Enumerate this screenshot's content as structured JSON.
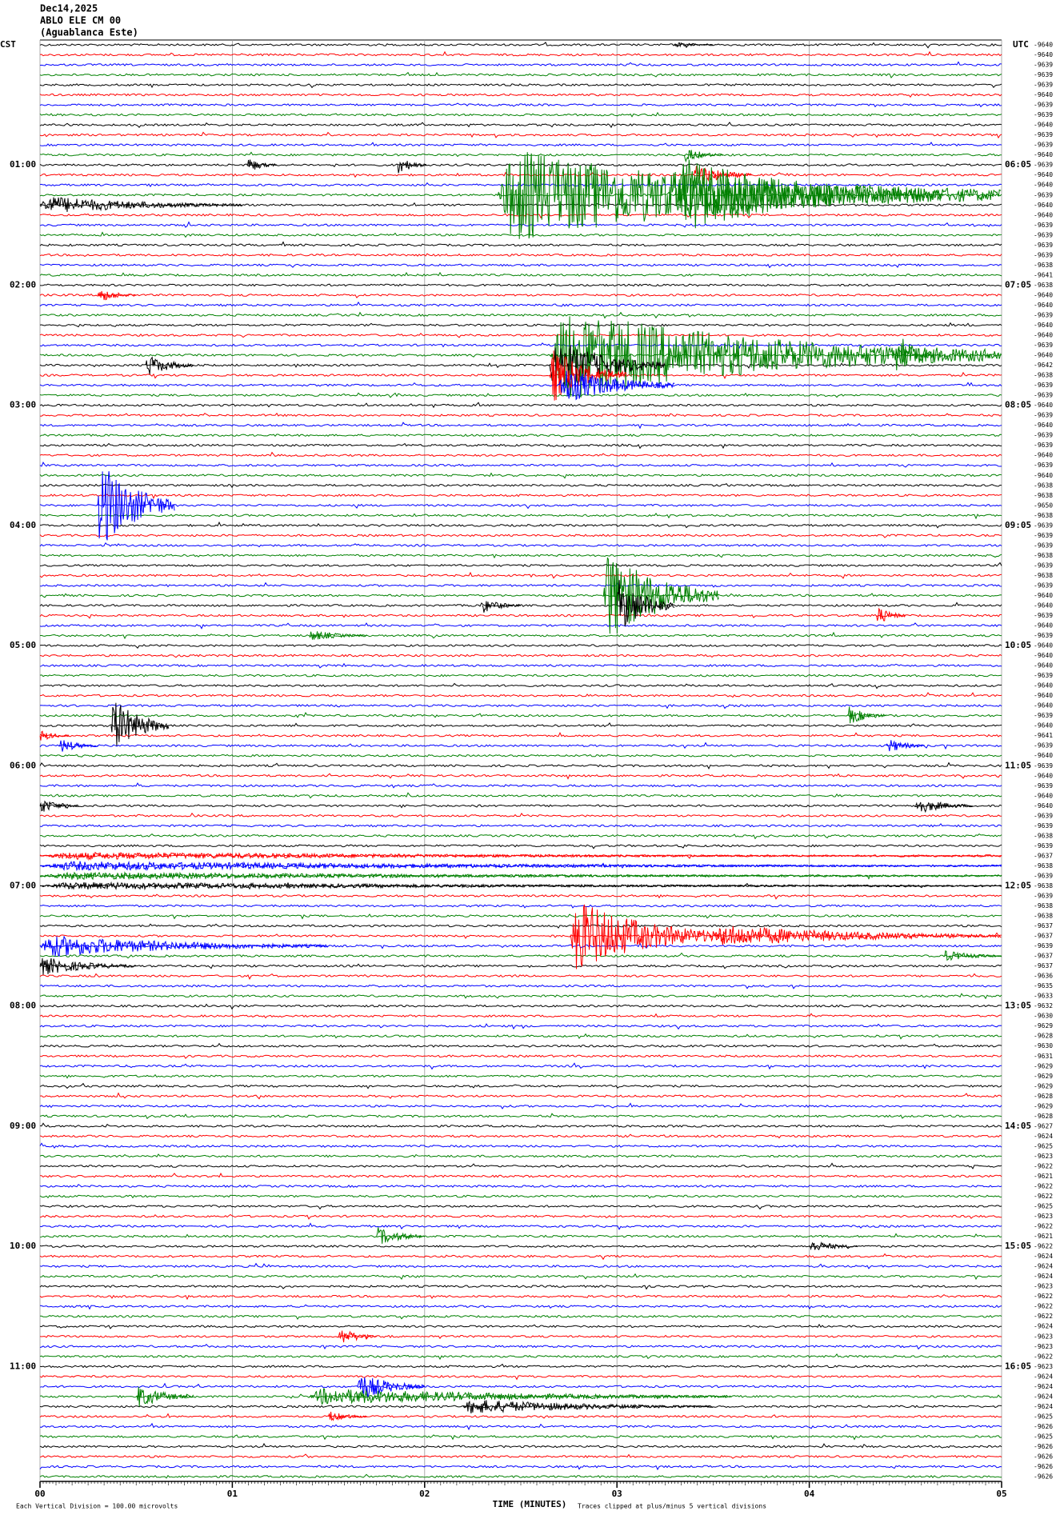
{
  "header": {
    "date": "Dec14,2025",
    "station": "ABLO ELE CM 00",
    "site": "(Aguablanca Este)"
  },
  "left_zone": "CST",
  "right_zone": "UTC",
  "hour_labels_left": [
    "01:00",
    "02:00",
    "03:00",
    "04:00",
    "05:00",
    "06:00",
    "07:00",
    "08:00",
    "09:00",
    "10:00",
    "11:00"
  ],
  "hour_labels_right": [
    "06:05",
    "07:05",
    "08:05",
    "09:05",
    "10:05",
    "11:05",
    "12:05",
    "13:05",
    "14:05",
    "15:05",
    "16:05"
  ],
  "colors": [
    "#000000",
    "#ff0000",
    "#0000ff",
    "#008000"
  ],
  "offsets": [
    -9640,
    -9640,
    -9639,
    -9639,
    -9639,
    -9640,
    -9639,
    -9639,
    -9640,
    -9639,
    -9639,
    -9640,
    -9639,
    -9640,
    -9640,
    -9639,
    -9640,
    -9640,
    -9639,
    -9639,
    -9639,
    -9639,
    -9638,
    -9641,
    -9638,
    -9640,
    -9640,
    -9639,
    -9640,
    -9640,
    -9639,
    -9640,
    -9642,
    -9638,
    -9639,
    -9639,
    -9640,
    -9639,
    -9640,
    -9639,
    -9639,
    -9640,
    -9639,
    -9640,
    -9638,
    -9638,
    -9650,
    -9638,
    -9639,
    -9639,
    -9639,
    -9638,
    -9639,
    -9638,
    -9639,
    -9640,
    -9640,
    -9639,
    -9640,
    -9639,
    -9640,
    -9640,
    -9640,
    -9639,
    -9640,
    -9640,
    -9640,
    -9639,
    -9640,
    -9641,
    -9639,
    -9640,
    -9639,
    -9640,
    -9639,
    -9640,
    -9640,
    -9639,
    -9639,
    -9638,
    -9639,
    -9637,
    -9638,
    -9639,
    -9638,
    -9639,
    -9638,
    -9638,
    -9637,
    -9637,
    -9639,
    -9637,
    -9637,
    -9636,
    -9635,
    -9633,
    -9632,
    -9630,
    -9629,
    -9628,
    -9630,
    -9631,
    -9629,
    -9629,
    -9629,
    -9628,
    -9629,
    -9628,
    -9627,
    -9624,
    -9625,
    -9623,
    -9622,
    -9621,
    -9622,
    -9622,
    -9625,
    -9623,
    -9622,
    -9621,
    -9622,
    -9624,
    -9624,
    -9624,
    -9623,
    -9622,
    -9622,
    -9622,
    -9624,
    -9623,
    -9623,
    -9622,
    -9623,
    -9624,
    -9624,
    -9624,
    -9624,
    -9625,
    -9626,
    -9625,
    -9626,
    -9626,
    -9626,
    -9626
  ],
  "events": [
    {
      "trace": 0,
      "start": 3.3,
      "duration": 0.2,
      "amplitude": 0.3
    },
    {
      "trace": 11,
      "start": 3.35,
      "duration": 0.2,
      "amplitude": 0.8
    },
    {
      "trace": 12,
      "start": 1.08,
      "duration": 0.15,
      "amplitude": 0.8
    },
    {
      "trace": 12,
      "start": 1.86,
      "duration": 0.15,
      "amplitude": 1
    },
    {
      "trace": 13,
      "start": 3.4,
      "duration": 0.3,
      "amplitude": 1.2
    },
    {
      "trace": 15,
      "start": 2.38,
      "duration": 2.62,
      "amplitude": 5
    },
    {
      "trace": 15,
      "start": 3.3,
      "duration": 1.4,
      "amplitude": 4
    },
    {
      "trace": 16,
      "start": 0,
      "duration": 1.05,
      "amplitude": 1
    },
    {
      "trace": 25,
      "start": 0.3,
      "duration": 0.2,
      "amplitude": 0.8
    },
    {
      "trace": 31,
      "start": 2.65,
      "duration": 2.35,
      "amplitude": 5
    },
    {
      "trace": 31,
      "start": 4.45,
      "duration": 0.2,
      "amplitude": 2.5
    },
    {
      "trace": 32,
      "start": 0.55,
      "duration": 0.25,
      "amplitude": 1.2
    },
    {
      "trace": 32,
      "start": 2.65,
      "duration": 0.6,
      "amplitude": 3
    },
    {
      "trace": 33,
      "start": 2.65,
      "duration": 0.4,
      "amplitude": 3
    },
    {
      "trace": 34,
      "start": 2.7,
      "duration": 0.6,
      "amplitude": 2
    },
    {
      "trace": 46,
      "start": 0.3,
      "duration": 0.4,
      "amplitude": 5
    },
    {
      "trace": 55,
      "start": 2.93,
      "duration": 0.6,
      "amplitude": 5
    },
    {
      "trace": 56,
      "start": 2.3,
      "duration": 0.2,
      "amplitude": 0.8
    },
    {
      "trace": 56,
      "start": 3,
      "duration": 0.3,
      "amplitude": 3
    },
    {
      "trace": 57,
      "start": 4.35,
      "duration": 0.15,
      "amplitude": 1
    },
    {
      "trace": 59,
      "start": 1.4,
      "duration": 0.3,
      "amplitude": 0.6
    },
    {
      "trace": 67,
      "start": 4.2,
      "duration": 0.2,
      "amplitude": 1
    },
    {
      "trace": 68,
      "start": 0.37,
      "duration": 0.3,
      "amplitude": 3
    },
    {
      "trace": 69,
      "start": 0,
      "duration": 0.15,
      "amplitude": 0.6
    },
    {
      "trace": 70,
      "start": 0.1,
      "duration": 0.2,
      "amplitude": 0.8
    },
    {
      "trace": 70,
      "start": 4.4,
      "duration": 0.2,
      "amplitude": 0.8
    },
    {
      "trace": 76,
      "start": 0,
      "duration": 0.2,
      "amplitude": 0.8
    },
    {
      "trace": 76,
      "start": 4.55,
      "duration": 0.3,
      "amplitude": 0.9
    },
    {
      "trace": 81,
      "start": 0,
      "duration": 5,
      "amplitude": 0.4
    },
    {
      "trace": 82,
      "start": 0,
      "duration": 5,
      "amplitude": 0.5
    },
    {
      "trace": 83,
      "start": 0,
      "duration": 5,
      "amplitude": 0.4
    },
    {
      "trace": 84,
      "start": 0,
      "duration": 5,
      "amplitude": 0.4
    },
    {
      "trace": 89,
      "start": 2.76,
      "duration": 0.8,
      "amplitude": 4
    },
    {
      "trace": 89,
      "start": 3.5,
      "duration": 1.5,
      "amplitude": 1.2
    },
    {
      "trace": 90,
      "start": 0,
      "duration": 1.5,
      "amplitude": 1.2
    },
    {
      "trace": 91,
      "start": 4.7,
      "duration": 0.3,
      "amplitude": 0.6
    },
    {
      "trace": 92,
      "start": 0,
      "duration": 0.5,
      "amplitude": 1
    },
    {
      "trace": 119,
      "start": 1.75,
      "duration": 0.25,
      "amplitude": 1
    },
    {
      "trace": 120,
      "start": 4,
      "duration": 0.25,
      "amplitude": 0.7
    },
    {
      "trace": 129,
      "start": 1.55,
      "duration": 0.2,
      "amplitude": 1
    },
    {
      "trace": 134,
      "start": 1.65,
      "duration": 0.35,
      "amplitude": 1.5
    },
    {
      "trace": 135,
      "start": 0.5,
      "duration": 0.3,
      "amplitude": 1.2
    },
    {
      "trace": 135,
      "start": 1.4,
      "duration": 2.2,
      "amplitude": 0.9
    },
    {
      "trace": 136,
      "start": 2.2,
      "duration": 1.3,
      "amplitude": 0.8
    },
    {
      "trace": 137,
      "start": 1.5,
      "duration": 0.2,
      "amplitude": 0.6
    }
  ],
  "x_axis": {
    "title": "TIME (MINUTES)",
    "xlim": [
      0,
      5
    ],
    "xticks": [
      {
        "value": 0,
        "label": "00"
      },
      {
        "value": 1,
        "label": "01"
      },
      {
        "value": 2,
        "label": "02"
      },
      {
        "value": 3,
        "label": "03"
      },
      {
        "value": 4,
        "label": "04"
      },
      {
        "value": 5,
        "label": "05"
      }
    ]
  },
  "footer_left": "Each Vertical Division =  100.00 microvolts",
  "footer_right": "Traces clipped at plus/minus 5 vertical divisions"
}
